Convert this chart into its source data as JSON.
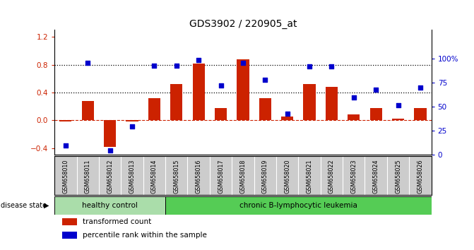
{
  "title": "GDS3902 / 220905_at",
  "categories": [
    "GSM658010",
    "GSM658011",
    "GSM658012",
    "GSM658013",
    "GSM658014",
    "GSM658015",
    "GSM658016",
    "GSM658017",
    "GSM658018",
    "GSM658019",
    "GSM658020",
    "GSM658021",
    "GSM658022",
    "GSM658023",
    "GSM658024",
    "GSM658025",
    "GSM658026"
  ],
  "bar_values": [
    -0.02,
    0.28,
    -0.38,
    -0.02,
    0.32,
    0.52,
    0.82,
    0.18,
    0.88,
    0.32,
    0.05,
    0.52,
    0.48,
    0.08,
    0.18,
    0.02,
    0.18
  ],
  "dot_values_pct": [
    10,
    96,
    5,
    30,
    93,
    93,
    99,
    72,
    96,
    78,
    43,
    92,
    92,
    60,
    68,
    52,
    70
  ],
  "bar_color": "#cc2200",
  "dot_color": "#0000cc",
  "ylim_left": [
    -0.5,
    1.3
  ],
  "ylim_right": [
    0,
    130
  ],
  "yticks_left": [
    -0.4,
    0.0,
    0.4,
    0.8,
    1.2
  ],
  "yticks_right": [
    0,
    25,
    50,
    75,
    100
  ],
  "ytick_labels_right": [
    "0",
    "25",
    "50",
    "75",
    "100%"
  ],
  "hlines": [
    0.8,
    0.4
  ],
  "zero_line_color": "#cc2200",
  "grid_color": "#000000",
  "healthy_label": "healthy control",
  "disease_label": "chronic B-lymphocytic leukemia",
  "healthy_count": 5,
  "disease_state_label": "disease state",
  "legend_bar_label": "transformed count",
  "legend_dot_label": "percentile rank within the sample",
  "healthy_color": "#aaddaa",
  "disease_color": "#55cc55",
  "bg_color": "#ffffff",
  "plot_bg": "#ffffff",
  "tick_label_color_left": "#cc2200",
  "tick_label_color_right": "#0000cc",
  "xtick_bg": "#cccccc"
}
